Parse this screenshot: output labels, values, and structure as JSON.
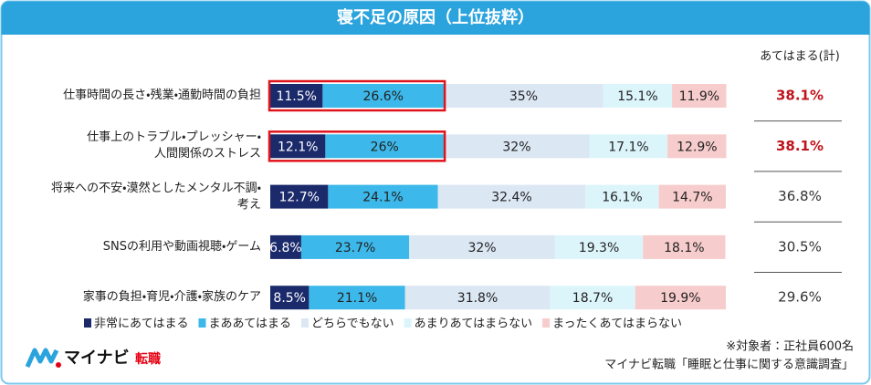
{
  "chart_data": {
    "type": "stacked_bar_100",
    "title": "寝不足の原因（上位抜粋）",
    "categories": [
      "仕事時間の長さ・残業・通勤時間の負担",
      "仕事上のトラブル・プレッシャー・\n人間関係のストレス",
      "将来への不安・漠然としたメンタル不調・\n考え",
      "SNSの利用や動画視聴・ゲーム",
      "家事の負担・育児・介護・家族のケア"
    ],
    "series": [
      {
        "name": "非常にあてはまる",
        "color": "#1b2a6b",
        "text_color": "#ffffff",
        "values": [
          11.5,
          12.1,
          12.7,
          6.8,
          8.5
        ],
        "value_labels": [
          "11.5%",
          "12.1%",
          "12.7%",
          "6.8%",
          "8.5%"
        ]
      },
      {
        "name": "まああてはまる",
        "color": "#3db8ea",
        "text_color": "#222222",
        "values": [
          26.6,
          26,
          24.1,
          23.7,
          21.1
        ],
        "value_labels": [
          "26.6%",
          "26%",
          "24.1%",
          "23.7%",
          "21.1%"
        ]
      },
      {
        "name": "どちらでもない",
        "color": "#dce7f4",
        "text_color": "#222222",
        "values": [
          35,
          32,
          32.4,
          32,
          31.8
        ],
        "value_labels": [
          "35%",
          "32%",
          "32.4%",
          "32%",
          "31.8%"
        ]
      },
      {
        "name": "あまりあてはまらない",
        "color": "#dcf5fb",
        "text_color": "#222222",
        "values": [
          15.1,
          17.1,
          16.1,
          19.3,
          18.7
        ],
        "value_labels": [
          "15.1%",
          "17.1%",
          "16.1%",
          "19.3%",
          "18.7%"
        ]
      },
      {
        "name": "まったくあてはまらない",
        "color": "#f7cccc",
        "text_color": "#222222",
        "values": [
          11.9,
          12.9,
          14.7,
          18.1,
          19.9
        ],
        "value_labels": [
          "11.9%",
          "12.9%",
          "14.7%",
          "18.1%",
          "19.9%"
        ]
      }
    ],
    "totals_title": "あてはまる(計)",
    "totals": [
      38.1,
      38.1,
      36.8,
      30.5,
      29.6
    ],
    "totals_labels": [
      "38.1%",
      "38.1%",
      "36.8%",
      "30.5%",
      "29.6%"
    ],
    "totals_colors": [
      "#c0141c",
      "#c0141c",
      "#333333",
      "#333333",
      "#333333"
    ],
    "notes": [
      "※対象者：正社員600名",
      "マイナビ転職「睡眠と仕事に関する意識調査」"
    ],
    "logo": {
      "brand": "マイナビ",
      "service": "転職"
    }
  }
}
